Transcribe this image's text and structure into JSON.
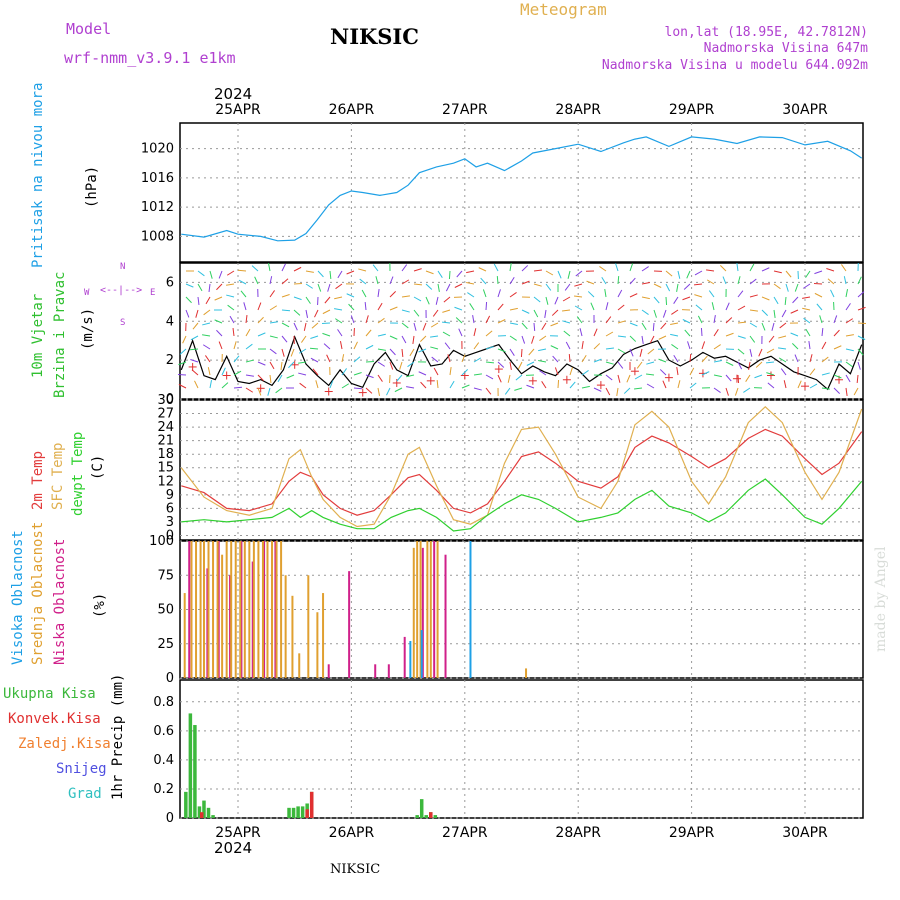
{
  "header": {
    "model_label": "Model",
    "model_name": "wrf-nmm_v3.9.1 e1km",
    "station": "NIKSIC",
    "meteogram_title": "Meteogram",
    "coords": "lon,lat (18.95E, 42.7812N)",
    "altitude": "Nadmorska Visina 647m",
    "model_altitude": "Nadmorska Visina u modelu 644.092m",
    "year": "2024",
    "footer_station": "NIKSIC",
    "watermark": "made by Angel"
  },
  "colors": {
    "pressure": "#1ea0e6",
    "temp2m": "#e23c3c",
    "sfc": "#e0b050",
    "dewpt": "#30d030",
    "high_cloud": "#1ea0e6",
    "mid_cloud": "#e0a030",
    "low_cloud": "#d0208a",
    "rain_total": "#3cb83c",
    "rain_conv": "#e03030",
    "snow": "#5050e0",
    "grad": "#30c0c0"
  },
  "chart_data": [
    {
      "type": "line",
      "panel": "pressure",
      "ylabel_lines": [
        "Pritisak na nivou mora",
        "(hPa)"
      ],
      "x_ticks": [
        "25APR",
        "26APR",
        "27APR",
        "28APR",
        "29APR",
        "30APR"
      ],
      "yticks": [
        1008,
        1012,
        1016,
        1020
      ],
      "ylim": [
        1004.5,
        1023.5
      ],
      "series": [
        {
          "key": "pressure",
          "x": [
            -0.5,
            -0.3,
            -0.1,
            0.0,
            0.2,
            0.35,
            0.5,
            0.6,
            0.7,
            0.8,
            0.9,
            1.0,
            1.1,
            1.25,
            1.4,
            1.5,
            1.6,
            1.75,
            1.9,
            2.0,
            2.1,
            2.2,
            2.35,
            2.5,
            2.6,
            2.8,
            3.0,
            3.2,
            3.4,
            3.5,
            3.6,
            3.8,
            4.0,
            4.2,
            4.4,
            4.6,
            4.8,
            5.0,
            5.2,
            5.4,
            5.5
          ],
          "y": [
            1008.3,
            1007.9,
            1008.8,
            1008.3,
            1008.0,
            1007.4,
            1007.5,
            1008.4,
            1010.3,
            1012.3,
            1013.6,
            1014.2,
            1014.0,
            1013.6,
            1014.0,
            1015.0,
            1016.7,
            1017.5,
            1018.0,
            1018.6,
            1017.5,
            1018.0,
            1017.0,
            1018.3,
            1019.4,
            1020.0,
            1020.6,
            1019.6,
            1020.8,
            1021.3,
            1021.6,
            1020.3,
            1021.6,
            1021.3,
            1020.7,
            1021.6,
            1021.5,
            1020.5,
            1021.0,
            1019.7,
            1018.7
          ]
        }
      ]
    },
    {
      "type": "line",
      "panel": "wind",
      "ylabel_lines": [
        "10m Vjetar",
        "Brzina i Pravac",
        "(m/s)"
      ],
      "compass": {
        "north": "N",
        "west": "W",
        "east": "E",
        "south": "S"
      },
      "yticks": [
        0,
        2,
        4,
        6
      ],
      "ylim": [
        0,
        7
      ],
      "series": [
        {
          "key": "wind",
          "x": [
            -0.5,
            -0.4,
            -0.3,
            -0.2,
            -0.1,
            0.0,
            0.1,
            0.2,
            0.3,
            0.4,
            0.5,
            0.6,
            0.7,
            0.8,
            0.9,
            1.0,
            1.1,
            1.2,
            1.3,
            1.4,
            1.5,
            1.6,
            1.7,
            1.8,
            1.9,
            2.0,
            2.1,
            2.2,
            2.3,
            2.4,
            2.5,
            2.6,
            2.7,
            2.8,
            2.9,
            3.0,
            3.1,
            3.2,
            3.3,
            3.4,
            3.5,
            3.6,
            3.7,
            3.8,
            3.9,
            4.0,
            4.1,
            4.2,
            4.3,
            4.4,
            4.5,
            4.6,
            4.7,
            4.8,
            4.9,
            5.0,
            5.1,
            5.2,
            5.3,
            5.4,
            5.5
          ],
          "y": [
            1.5,
            3.0,
            1.2,
            1.0,
            2.2,
            0.9,
            0.8,
            1.0,
            0.7,
            1.5,
            3.2,
            1.8,
            1.2,
            0.7,
            1.5,
            0.8,
            0.6,
            1.8,
            2.4,
            1.5,
            1.2,
            2.8,
            1.7,
            1.8,
            2.5,
            2.2,
            2.4,
            2.6,
            2.8,
            2.0,
            1.3,
            1.7,
            1.4,
            1.2,
            1.8,
            1.5,
            0.9,
            1.3,
            1.6,
            2.3,
            2.6,
            2.8,
            3.0,
            2.0,
            1.7,
            2.0,
            2.4,
            2.1,
            2.2,
            1.9,
            1.6,
            2.0,
            2.2,
            1.8,
            1.4,
            1.2,
            1.0,
            0.5,
            1.8,
            1.3,
            2.8
          ]
        }
      ]
    },
    {
      "type": "line",
      "panel": "temperature",
      "ylabel_lines": [
        "2m Temp",
        "SFC Temp",
        "dewpt Temp",
        "(C)"
      ],
      "yticks": [
        0,
        3,
        6,
        9,
        12,
        15,
        18,
        21,
        24,
        27,
        30
      ],
      "ylim": [
        -1,
        30
      ],
      "series": [
        {
          "key": "temp2m",
          "x": [
            -0.5,
            -0.3,
            -0.1,
            0.1,
            0.3,
            0.45,
            0.55,
            0.65,
            0.75,
            0.9,
            1.05,
            1.2,
            1.35,
            1.5,
            1.6,
            1.75,
            1.9,
            2.05,
            2.2,
            2.35,
            2.5,
            2.65,
            2.8,
            3.0,
            3.2,
            3.35,
            3.5,
            3.65,
            3.8,
            4.0,
            4.15,
            4.3,
            4.5,
            4.65,
            4.8,
            5.0,
            5.15,
            5.3,
            5.5
          ],
          "y": [
            11,
            9.5,
            6.0,
            5.5,
            7.0,
            12.0,
            14.0,
            13.0,
            9.0,
            6.0,
            4.5,
            5.5,
            9.0,
            12.8,
            13.5,
            10.0,
            6.0,
            5.0,
            7.0,
            12.0,
            17.5,
            18.5,
            16.0,
            12.0,
            10.5,
            13.0,
            19.5,
            22.0,
            20.5,
            17.5,
            15.0,
            17.0,
            21.5,
            23.5,
            22.0,
            17.0,
            13.5,
            16.0,
            23.0
          ]
        },
        {
          "key": "sfc",
          "x": [
            -0.5,
            -0.3,
            -0.1,
            0.1,
            0.3,
            0.45,
            0.55,
            0.65,
            0.75,
            0.9,
            1.05,
            1.2,
            1.35,
            1.5,
            1.6,
            1.75,
            1.9,
            2.05,
            2.2,
            2.35,
            2.5,
            2.65,
            2.8,
            3.0,
            3.2,
            3.35,
            3.5,
            3.65,
            3.8,
            4.0,
            4.15,
            4.3,
            4.5,
            4.65,
            4.8,
            5.0,
            5.15,
            5.3,
            5.5
          ],
          "y": [
            15,
            8.5,
            5.5,
            4.5,
            6.0,
            17.0,
            19.0,
            13.0,
            8.0,
            4.0,
            2.0,
            2.5,
            9.0,
            18.0,
            19.5,
            11.0,
            3.5,
            2.5,
            4.5,
            16.0,
            23.5,
            24.0,
            18.0,
            8.5,
            6.0,
            12.0,
            24.5,
            27.5,
            24.0,
            12.0,
            7.0,
            13.0,
            25.0,
            28.5,
            25.0,
            14.0,
            8.0,
            14.0,
            28.0
          ]
        },
        {
          "key": "dewpt",
          "x": [
            -0.5,
            -0.3,
            -0.1,
            0.1,
            0.3,
            0.45,
            0.55,
            0.65,
            0.75,
            0.9,
            1.05,
            1.2,
            1.35,
            1.5,
            1.6,
            1.75,
            1.9,
            2.05,
            2.2,
            2.35,
            2.5,
            2.65,
            2.8,
            3.0,
            3.2,
            3.35,
            3.5,
            3.65,
            3.8,
            4.0,
            4.15,
            4.3,
            4.5,
            4.65,
            4.8,
            5.0,
            5.15,
            5.3,
            5.5
          ],
          "y": [
            3.0,
            3.5,
            3.0,
            3.5,
            4.0,
            6.0,
            4.0,
            5.5,
            4.0,
            2.5,
            1.5,
            1.5,
            4.0,
            5.5,
            6.0,
            4.0,
            1.0,
            1.5,
            4.5,
            7.0,
            9.0,
            8.0,
            6.0,
            3.0,
            4.0,
            5.0,
            8.0,
            10.0,
            6.5,
            5.0,
            3.0,
            5.0,
            10.0,
            12.5,
            9.0,
            4.0,
            2.5,
            6.0,
            12.0
          ]
        }
      ]
    },
    {
      "type": "bar",
      "panel": "cloud",
      "ylabel_lines": [
        "Visoka Oblacnost",
        "Srednja Oblacnost",
        "Niska Oblacnost",
        "(%)"
      ],
      "yticks": [
        0,
        25,
        50,
        75,
        100
      ],
      "ylim": [
        0,
        100
      ],
      "series": [
        {
          "key": "low_cloud",
          "x": [
            -0.43,
            -0.27,
            -0.17,
            -0.07,
            0.03,
            0.13,
            0.23,
            0.33,
            0.8,
            0.98,
            1.21,
            1.33,
            1.47,
            1.63,
            1.73,
            1.83
          ],
          "y": [
            100,
            80,
            100,
            75,
            100,
            85,
            100,
            100,
            10,
            78,
            10,
            10,
            30,
            95,
            100,
            90
          ]
        },
        {
          "key": "mid_cloud",
          "x": [
            -0.47,
            -0.41,
            -0.37,
            -0.33,
            -0.3,
            -0.26,
            -0.22,
            -0.18,
            -0.14,
            -0.1,
            -0.06,
            -0.02,
            0.02,
            0.06,
            0.1,
            0.14,
            0.18,
            0.22,
            0.26,
            0.3,
            0.34,
            0.38,
            0.42,
            0.48,
            0.54,
            0.62,
            0.7,
            0.75,
            1.55,
            1.58,
            1.61,
            1.67,
            1.7,
            1.76,
            2.54
          ],
          "y": [
            62,
            100,
            100,
            100,
            100,
            100,
            100,
            100,
            90,
            100,
            100,
            100,
            100,
            100,
            100,
            100,
            100,
            100,
            100,
            100,
            100,
            100,
            75,
            60,
            18,
            75,
            48,
            62,
            95,
            100,
            100,
            100,
            100,
            100,
            7
          ]
        },
        {
          "key": "high_cloud",
          "x": [
            1.52,
            1.62,
            2.05
          ],
          "y": [
            27,
            35,
            100
          ]
        }
      ]
    },
    {
      "type": "bar",
      "panel": "precip",
      "ylabel_lines": [
        "1hr Precip (mm)"
      ],
      "legend": [
        "Ukupna Kisa",
        "Konvek.Kisa",
        "Zaledj.Kisa",
        "Snijeg",
        "Grad"
      ],
      "yticks": [
        0,
        0.2,
        0.4,
        0.6,
        0.8
      ],
      "ylim": [
        0,
        0.95
      ],
      "series": [
        {
          "key": "rain_total",
          "x": [
            -0.46,
            -0.42,
            -0.38,
            -0.34,
            -0.3,
            -0.26,
            -0.22,
            0.45,
            0.49,
            0.53,
            0.57,
            0.61,
            0.65,
            1.58,
            1.62,
            1.66,
            1.7,
            1.74
          ],
          "y": [
            0.18,
            0.72,
            0.64,
            0.08,
            0.12,
            0.07,
            0.02,
            0.07,
            0.07,
            0.08,
            0.08,
            0.1,
            0.18,
            0.02,
            0.13,
            0.02,
            0.04,
            0.02
          ]
        },
        {
          "key": "rain_conv",
          "x": [
            -0.32,
            0.61,
            0.65,
            1.7
          ],
          "y": [
            0.04,
            0.06,
            0.18,
            0.04
          ]
        }
      ]
    }
  ]
}
